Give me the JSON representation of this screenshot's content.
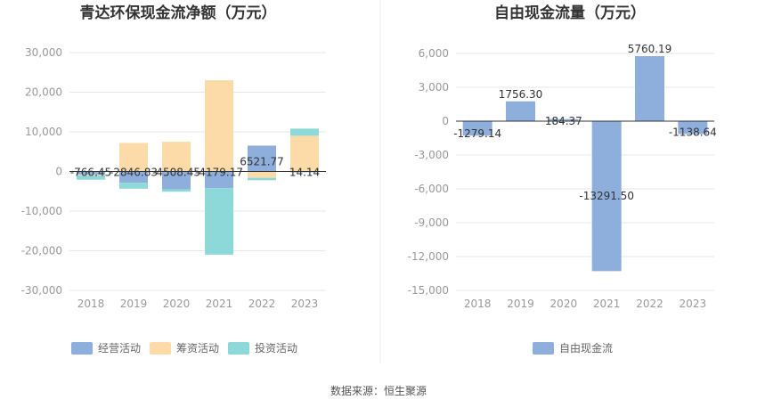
{
  "source_text": "数据来源：恒生聚源",
  "chart_data": [
    {
      "type": "bar",
      "stacked": true,
      "title": "青达环保现金流净额（万元）",
      "categories": [
        "2018",
        "2019",
        "2020",
        "2021",
        "2022",
        "2023"
      ],
      "ylim": [
        -30000,
        30000
      ],
      "yticks": [
        30000,
        20000,
        10000,
        0,
        -10000,
        -20000,
        -30000
      ],
      "ytick_labels": [
        "30,000",
        "20,000",
        "10,000",
        "0",
        "-10,000",
        "-20,000",
        "-30,000"
      ],
      "grid": true,
      "legend_position": "bottom",
      "series": [
        {
          "name": "经营活动",
          "color": "#8eaedc",
          "values": [
            -766.45,
            -2846.83,
            -4508.45,
            -4179.17,
            6521.77,
            14.14
          ]
        },
        {
          "name": "筹资活动",
          "color": "#fcdba8",
          "values": [
            -200,
            7200,
            7500,
            23000,
            -1600,
            9000
          ]
        },
        {
          "name": "投资活动",
          "color": "#8dd8d8",
          "values": [
            -1100,
            -1500,
            -600,
            -16800,
            -600,
            1800
          ]
        }
      ],
      "data_labels": [
        "-766.45",
        "-2846.83",
        "-4508.45",
        "-4179.17",
        "6521.77",
        "14.14"
      ]
    },
    {
      "type": "bar",
      "title": "自由现金流量（万元）",
      "categories": [
        "2018",
        "2019",
        "2020",
        "2021",
        "2022",
        "2023"
      ],
      "ylim": [
        -15000,
        6000
      ],
      "yticks": [
        6000,
        3000,
        0,
        -3000,
        -6000,
        -9000,
        -12000,
        -15000
      ],
      "ytick_labels": [
        "6,000",
        "3,000",
        "0",
        "-3,000",
        "-6,000",
        "-9,000",
        "-12,000",
        "-15,000"
      ],
      "grid": true,
      "legend_position": "bottom",
      "series": [
        {
          "name": "自由现金流",
          "color": "#8eaedc",
          "values": [
            -1279.14,
            1756.3,
            184.37,
            -13291.5,
            5760.19,
            -1138.64
          ]
        }
      ],
      "data_labels": [
        "-1279.14",
        "1756.30",
        "184.37",
        "-13291.50",
        "5760.19",
        "-1138.64"
      ]
    }
  ]
}
